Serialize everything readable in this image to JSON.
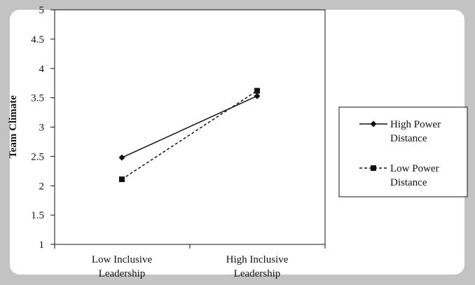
{
  "chart_data": {
    "type": "line",
    "ylabel": "Team Climate",
    "xlabel": "",
    "ylim": [
      1,
      5
    ],
    "yticks": [
      "1",
      "1.5",
      "2",
      "2.5",
      "3",
      "3.5",
      "4",
      "4.5",
      "5"
    ],
    "categories": [
      [
        "Low Inclusive",
        "Leadership"
      ],
      [
        "High Inclusive",
        "Leadership"
      ]
    ],
    "series": [
      {
        "name": [
          "High Power",
          "Distance"
        ],
        "values": [
          2.48,
          3.53
        ],
        "marker": "diamond",
        "line": "solid"
      },
      {
        "name": [
          "Low Power",
          "Distance"
        ],
        "values": [
          2.11,
          3.62
        ],
        "marker": "square",
        "line": "dashed"
      }
    ],
    "grid": false,
    "legend": "right"
  },
  "colors": {
    "frame": "#c3c3c3",
    "panel": "#ffffff",
    "ink": "#111111"
  }
}
